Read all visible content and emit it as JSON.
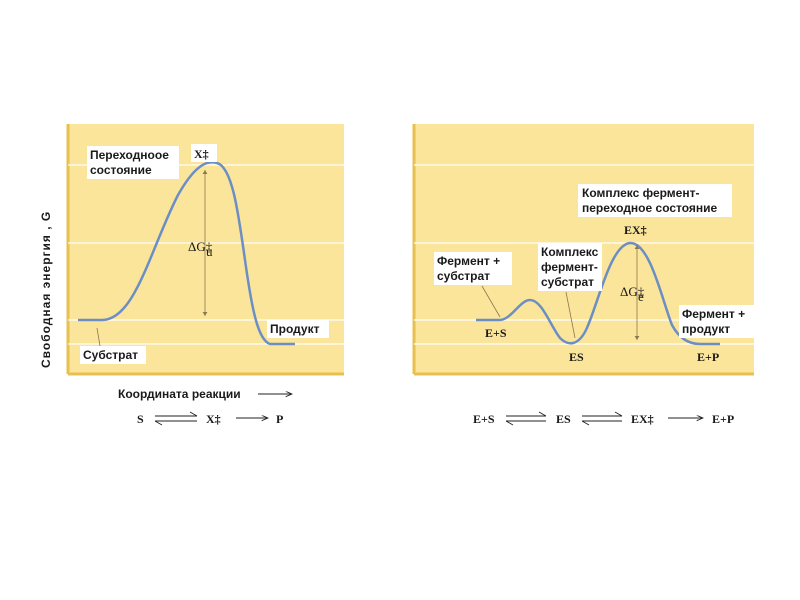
{
  "y_axis_label": "Свободная энергия , G",
  "x_axis_label": "Координата реакции",
  "left_panel": {
    "transition_state_label": "Переходноое состояние",
    "transition_state_line1": "Переходноое",
    "transition_state_line2": "состояние",
    "transition_symbol": "X‡",
    "delta_g_symbol": "ΔG‡",
    "delta_g_subscript": "u",
    "substrate_label": "Субстрат",
    "product_label": "Продукт",
    "scheme": {
      "s": "S",
      "x": "X‡",
      "p": "P"
    }
  },
  "right_panel": {
    "complex_ts_line1": "Комплекс фермент-",
    "complex_ts_line2": "переходное состояние",
    "ex_symbol": "EX‡",
    "delta_g_symbol": "ΔG‡",
    "delta_g_subscript": "e",
    "enzyme_substrate_line1": "Фермент +",
    "enzyme_substrate_line2": "субстрат",
    "complex_es_line1": "Комплекс",
    "complex_es_line2": "фермент-",
    "complex_es_line3": "субстрат",
    "enzyme_product_line1": "Фермент +",
    "enzyme_product_line2": "продукт",
    "es_plus_label": "E+S",
    "es_label": "ES",
    "ep_label": "E+P",
    "scheme": {
      "es_plus": "E+S",
      "es": "ES",
      "ex": "EX‡",
      "ep": "E+P"
    }
  },
  "colors": {
    "panel_bg": "#fbe59a",
    "panel_border": "#e8c050",
    "curve": "#6b8fc4",
    "gridline": "#ffffff"
  }
}
